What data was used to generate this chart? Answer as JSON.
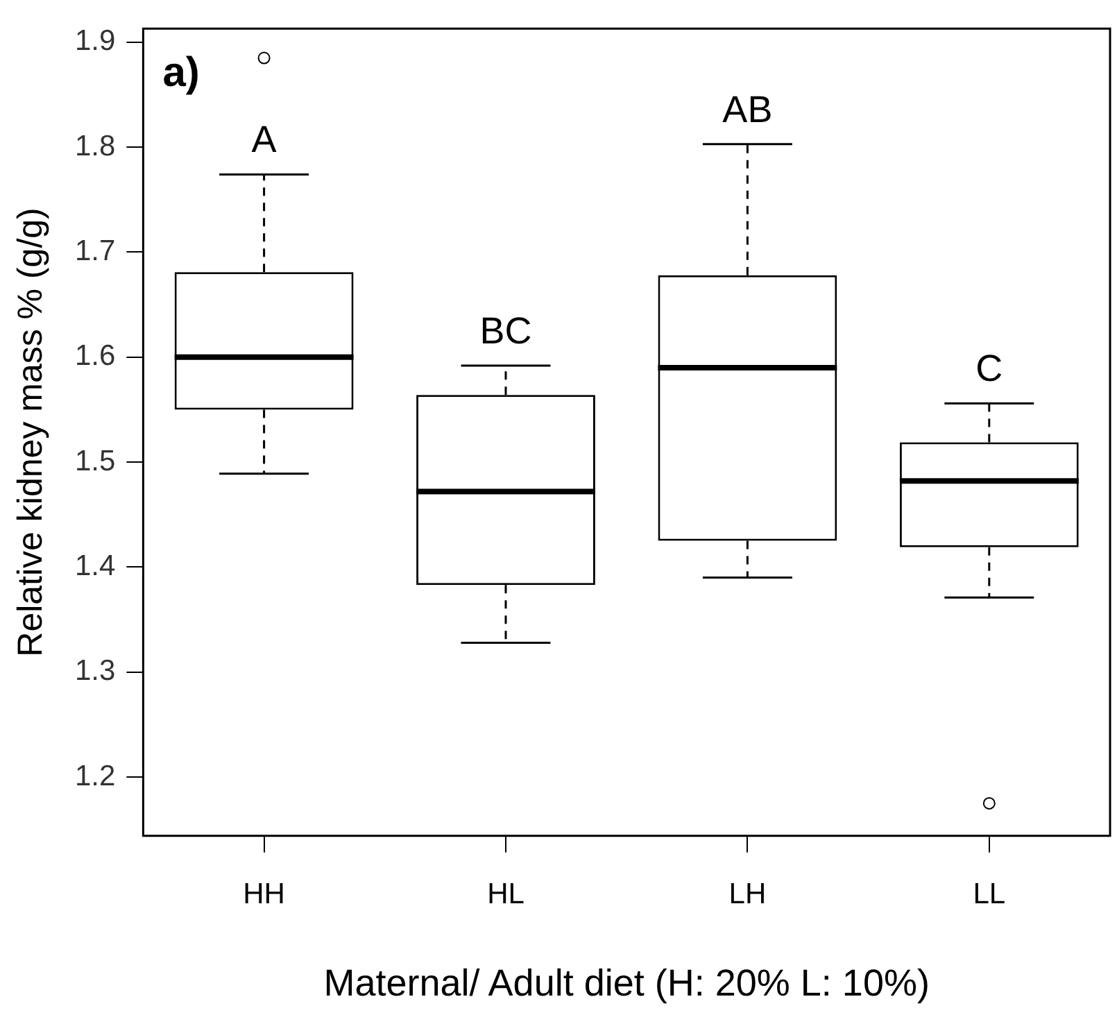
{
  "chart_data": {
    "type": "box",
    "categories": [
      "HH",
      "HL",
      "LH",
      "LL"
    ],
    "boxes": [
      {
        "low": 1.489,
        "q1": 1.55,
        "median": 1.6,
        "q3": 1.681,
        "high": 1.774,
        "outliers": [
          1.885
        ]
      },
      {
        "low": 1.328,
        "q1": 1.383,
        "median": 1.472,
        "q3": 1.564,
        "high": 1.592
      },
      {
        "low": 1.39,
        "q1": 1.425,
        "median": 1.59,
        "q3": 1.678,
        "high": 1.803
      },
      {
        "low": 1.371,
        "q1": 1.419,
        "median": 1.482,
        "q3": 1.519,
        "high": 1.556,
        "outliers": [
          1.175
        ]
      }
    ],
    "xlabel": "Maternal/ Adult diet (H: 20% L: 10%)",
    "ylabel": "Relative kidney mass % (g/g)",
    "ylim": [
      1.144,
      1.913
    ],
    "yticks": [
      1.2,
      1.3,
      1.4,
      1.5,
      1.6,
      1.7,
      1.8,
      1.9
    ],
    "grid": false,
    "annotations": [
      "a)",
      "A",
      "BC",
      "AB",
      "C"
    ]
  }
}
